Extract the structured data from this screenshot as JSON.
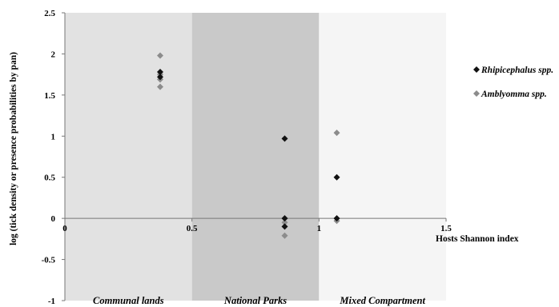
{
  "chart_data": {
    "type": "scatter",
    "title": "",
    "xlabel": "Hosts Shannon index",
    "ylabel": "log (tick density or  presence probabilities by pan)",
    "xlim": [
      0,
      1.5
    ],
    "ylim": [
      -1,
      2.5
    ],
    "x_ticks": [
      "0",
      "0.5",
      "1",
      "1.5"
    ],
    "x_tick_values": [
      0,
      0.5,
      1,
      1.5
    ],
    "y_ticks": [
      "2.5",
      "2",
      "1.5",
      "1",
      "0.5",
      "0",
      "-0.5",
      "-1"
    ],
    "y_tick_values": [
      2.5,
      2,
      1.5,
      1,
      0.5,
      0,
      -0.5,
      -1
    ],
    "grid": false,
    "legend_position": "right",
    "regions": [
      {
        "label": "Communal lands",
        "x_range": [
          -0.001,
          0.5
        ],
        "color": "#e2e2e2"
      },
      {
        "label": "National Parks",
        "x_range": [
          0.5,
          1.0
        ],
        "color": "#c9c9c9"
      },
      {
        "label": "Mixed Compartment",
        "x_range": [
          1.0,
          1.5
        ],
        "color": "#f5f5f5"
      }
    ],
    "series": [
      {
        "name": "Rhipicephalus spp.",
        "color": "#111111",
        "marker": "diamond",
        "points": [
          {
            "x": 0.375,
            "y": 1.78
          },
          {
            "x": 0.375,
            "y": 1.72
          },
          {
            "x": 0.865,
            "y": 0.97
          },
          {
            "x": 0.865,
            "y": 0.0
          },
          {
            "x": 0.865,
            "y": -0.1
          },
          {
            "x": 1.07,
            "y": 0.5
          },
          {
            "x": 1.07,
            "y": 0.0
          }
        ]
      },
      {
        "name": "Amblyomma spp.",
        "color": "#8c8c8c",
        "marker": "diamond",
        "points": [
          {
            "x": 0.375,
            "y": 1.98
          },
          {
            "x": 0.375,
            "y": 1.75
          },
          {
            "x": 0.375,
            "y": 1.69
          },
          {
            "x": 0.375,
            "y": 1.6
          },
          {
            "x": 0.865,
            "y": 0.0
          },
          {
            "x": 0.865,
            "y": -0.05
          },
          {
            "x": 0.865,
            "y": -0.21
          },
          {
            "x": 1.07,
            "y": 1.04
          },
          {
            "x": 1.07,
            "y": 0.0
          },
          {
            "x": 1.07,
            "y": -0.03
          }
        ]
      }
    ]
  }
}
